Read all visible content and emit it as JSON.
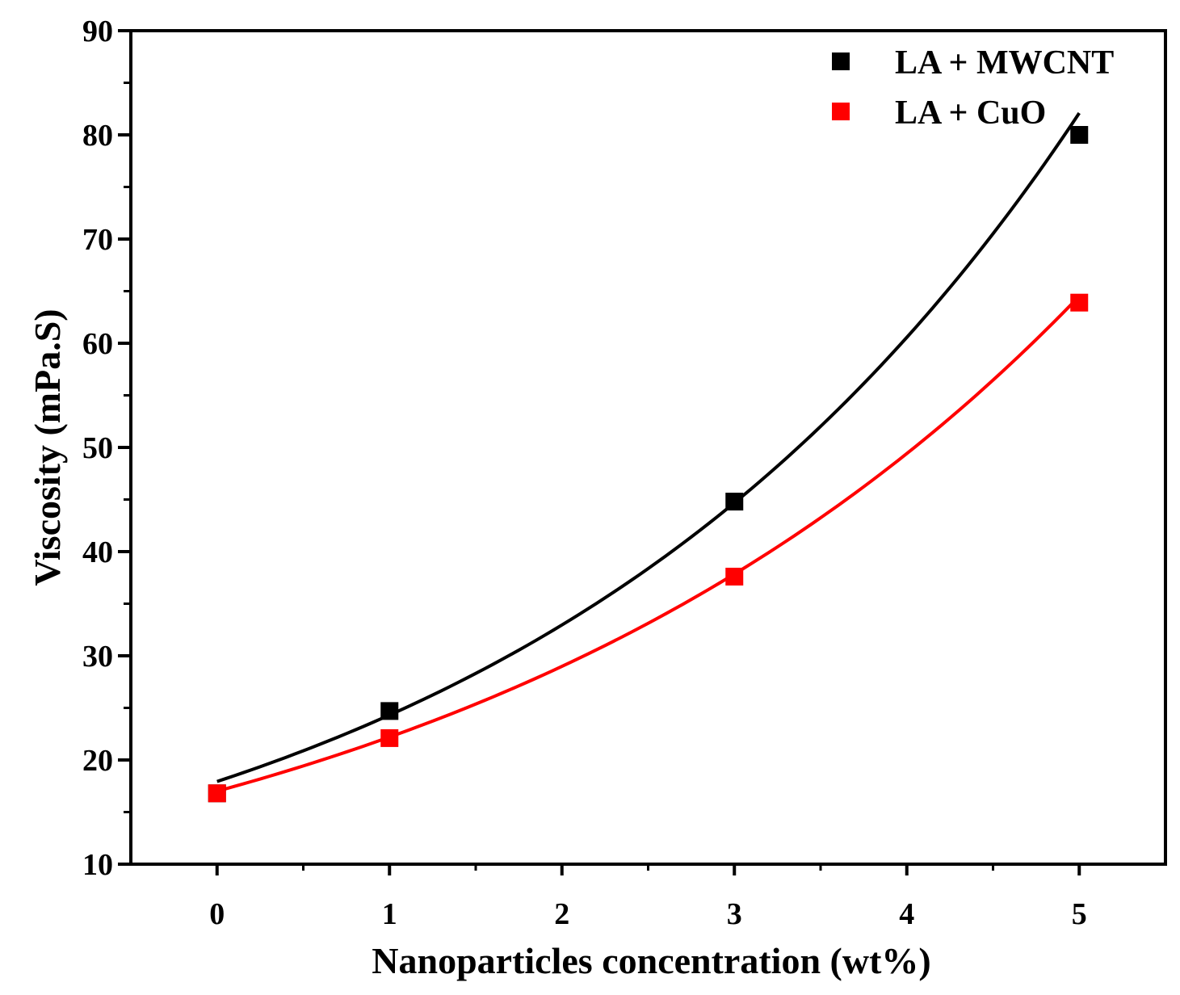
{
  "chart_data": {
    "type": "scatter",
    "title": "",
    "xlabel": "Nanoparticles concentration (wt%)",
    "ylabel": "Viscosity (mPa.S)",
    "xlim": [
      -0.5,
      5.5
    ],
    "ylim": [
      10,
      90
    ],
    "xticks": [
      0,
      1,
      2,
      3,
      4,
      5
    ],
    "yticks": [
      10,
      20,
      30,
      40,
      50,
      60,
      70,
      80,
      90
    ],
    "grid": false,
    "legend_position": "top-right",
    "series": [
      {
        "name": "LA + MWCNT",
        "color": "#000000",
        "x": [
          0,
          1,
          3,
          5
        ],
        "y": [
          16.8,
          24.7,
          44.8,
          80.0
        ],
        "fit": "exponential",
        "fit_points": {
          "x": [
            0,
            1,
            2,
            3,
            4,
            5
          ],
          "y": [
            17.6,
            24.3,
            33.4,
            45.8,
            61.0,
            80.0
          ]
        }
      },
      {
        "name": "LA + CuO",
        "color": "#ff0000",
        "x": [
          0,
          1,
          3,
          5
        ],
        "y": [
          16.8,
          22.1,
          37.6,
          63.9
        ],
        "fit": "exponential",
        "fit_points": {
          "x": [
            0,
            1,
            2,
            3,
            4,
            5
          ],
          "y": [
            17.0,
            22.1,
            29.0,
            38.0,
            49.9,
            63.9
          ]
        }
      }
    ]
  }
}
